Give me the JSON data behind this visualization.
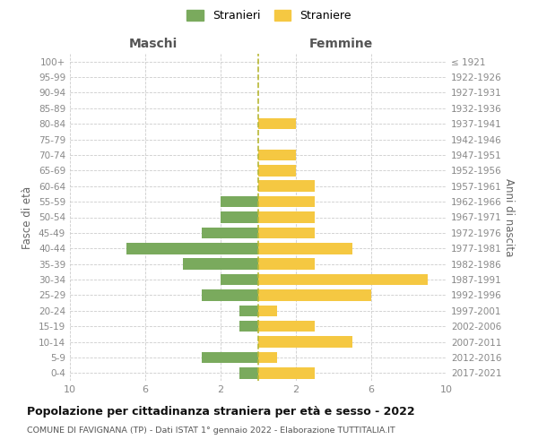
{
  "age_groups": [
    "0-4",
    "5-9",
    "10-14",
    "15-19",
    "20-24",
    "25-29",
    "30-34",
    "35-39",
    "40-44",
    "45-49",
    "50-54",
    "55-59",
    "60-64",
    "65-69",
    "70-74",
    "75-79",
    "80-84",
    "85-89",
    "90-94",
    "95-99",
    "100+"
  ],
  "birth_years": [
    "2017-2021",
    "2012-2016",
    "2007-2011",
    "2002-2006",
    "1997-2001",
    "1992-1996",
    "1987-1991",
    "1982-1986",
    "1977-1981",
    "1972-1976",
    "1967-1971",
    "1962-1966",
    "1957-1961",
    "1952-1956",
    "1947-1951",
    "1942-1946",
    "1937-1941",
    "1932-1936",
    "1927-1931",
    "1922-1926",
    "≤ 1921"
  ],
  "males": [
    1,
    3,
    0,
    1,
    1,
    3,
    2,
    4,
    7,
    3,
    2,
    2,
    0,
    0,
    0,
    0,
    0,
    0,
    0,
    0,
    0
  ],
  "females": [
    3,
    1,
    5,
    3,
    1,
    6,
    9,
    3,
    5,
    3,
    3,
    3,
    3,
    2,
    2,
    0,
    2,
    0,
    0,
    0,
    0
  ],
  "male_color": "#7aaa5d",
  "female_color": "#f5c842",
  "xlim": 10,
  "xlabel_left": "Maschi",
  "xlabel_right": "Femmine",
  "ylabel_left": "Fasce di età",
  "ylabel_right": "Anni di nascita",
  "legend_male": "Stranieri",
  "legend_female": "Straniere",
  "title": "Popolazione per cittadinanza straniera per età e sesso - 2022",
  "subtitle": "COMUNE DI FAVIGNANA (TP) - Dati ISTAT 1° gennaio 2022 - Elaborazione TUTTITALIA.IT",
  "center_line_color": "#b8b835",
  "grid_color": "#cccccc",
  "background_color": "#ffffff",
  "xtick_positions": [
    -10,
    -6,
    -2,
    2,
    6,
    10
  ],
  "bar_height": 0.72
}
